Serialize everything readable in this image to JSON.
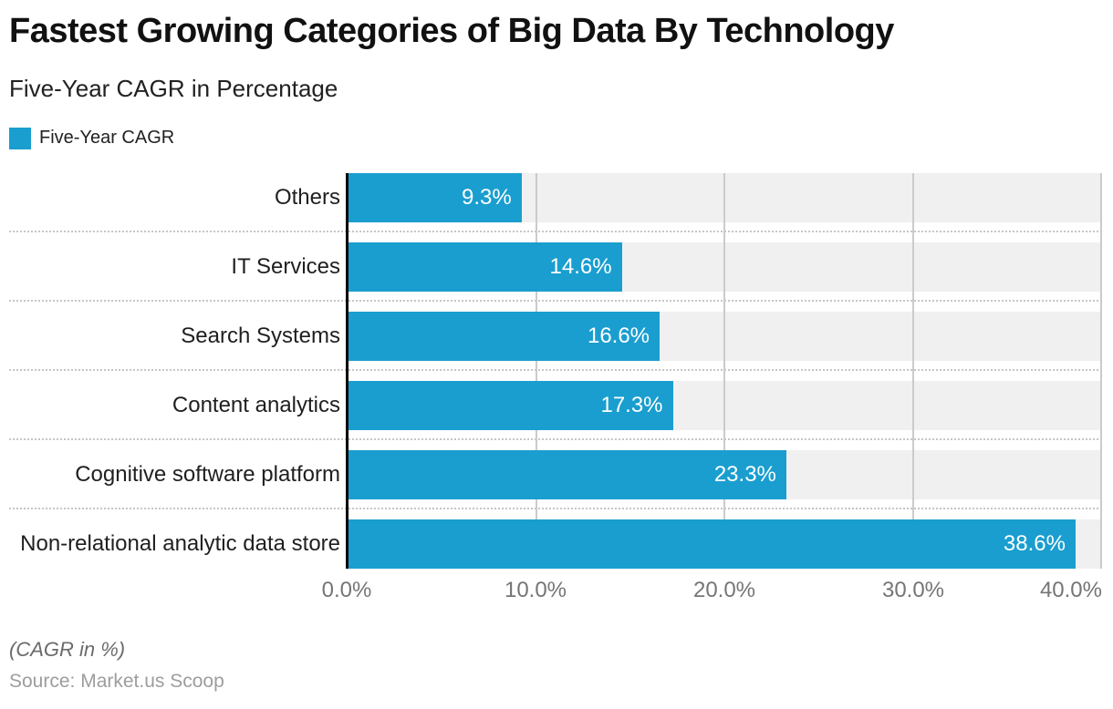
{
  "header": {
    "title": "Fastest Growing Categories of Big Data By Technology",
    "subtitle": "Five-Year CAGR in Percentage"
  },
  "legend": {
    "label": "Five-Year CAGR",
    "color": "#1a9ecf"
  },
  "chart_data": {
    "type": "bar",
    "orientation": "horizontal",
    "title": "Fastest Growing Categories of Big Data By Technology",
    "subtitle": "Five-Year CAGR in Percentage",
    "series_name": "Five-Year CAGR",
    "categories": [
      "Others",
      "IT Services",
      "Search Systems",
      "Content analytics",
      "Cognitive software platform",
      "Non-relational analytic data store"
    ],
    "values": [
      9.3,
      14.6,
      16.6,
      17.3,
      23.3,
      38.6
    ],
    "value_labels": [
      "9.3%",
      "14.6%",
      "16.6%",
      "17.3%",
      "23.3%",
      "38.6%"
    ],
    "xlabel": "",
    "ylabel": "",
    "xlim": [
      0,
      40
    ],
    "x_ticks": [
      "0.0%",
      "10.0%",
      "20.0%",
      "30.0%",
      "40.0%"
    ],
    "grid": "vertical gridlines at 10% steps, dotted horizontal row separators",
    "legend_position": "top-left",
    "bar_color": "#1a9ecf",
    "track_color": "#f0f0f1",
    "value_label_color": "#ffffff"
  },
  "footer": {
    "note": "(CAGR in %)",
    "source": "Source: Market.us Scoop"
  }
}
